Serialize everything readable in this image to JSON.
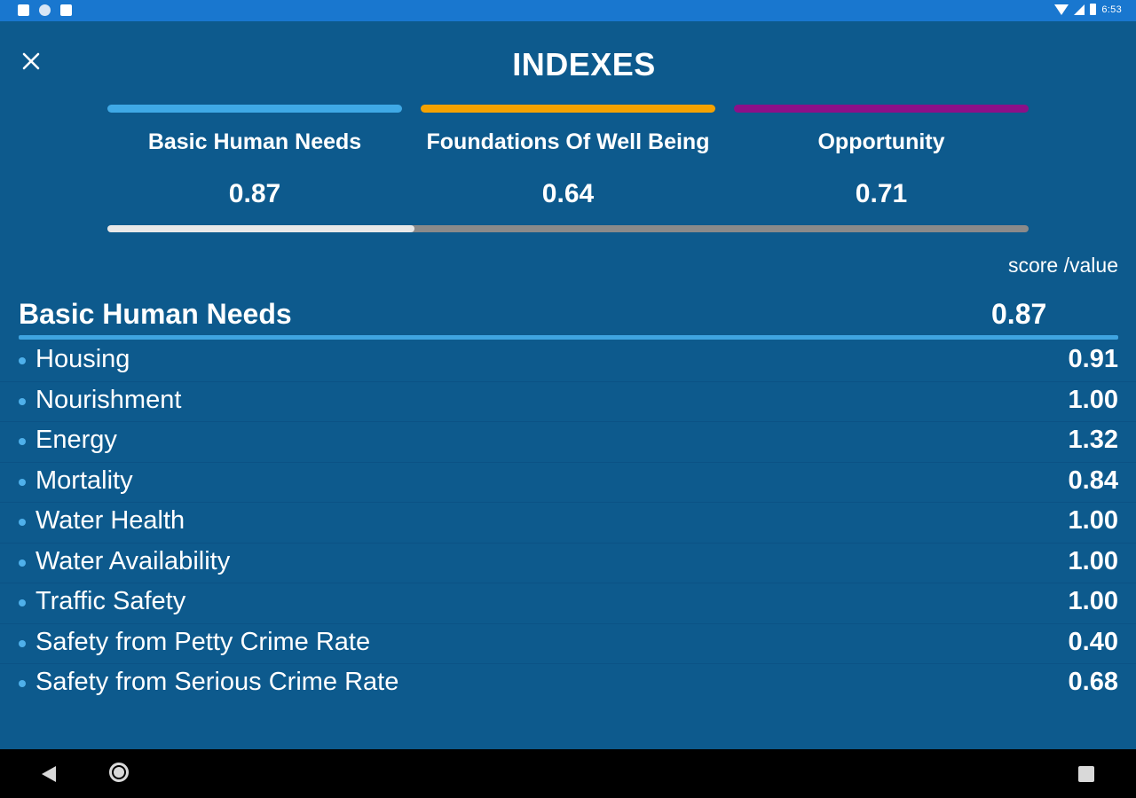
{
  "status_bar": {
    "time": "6:53"
  },
  "header": {
    "title": "INDEXES",
    "close_icon": "close-icon"
  },
  "indexes": [
    {
      "label": "Basic Human Needs",
      "value": "0.87",
      "color": "#3fa9e6"
    },
    {
      "label": "Foundations Of Well Being",
      "value": "0.64",
      "color": "#f5a200"
    },
    {
      "label": "Opportunity",
      "value": "0.71",
      "color": "#8c1088"
    }
  ],
  "tab_selector": {
    "selected_index": 0
  },
  "table": {
    "column_header": "score /value",
    "section_title": "Basic Human Needs",
    "section_value": "0.87",
    "rows": [
      {
        "label": "Housing",
        "value": "0.91"
      },
      {
        "label": "Nourishment",
        "value": "1.00"
      },
      {
        "label": "Energy",
        "value": "1.32"
      },
      {
        "label": "Mortality",
        "value": "0.84"
      },
      {
        "label": "Water Health",
        "value": "1.00"
      },
      {
        "label": "Water Availability",
        "value": "1.00"
      },
      {
        "label": "Traffic Safety",
        "value": "1.00"
      },
      {
        "label": "Safety from Petty Crime Rate",
        "value": "0.40"
      },
      {
        "label": "Safety from Serious Crime Rate",
        "value": "0.68"
      }
    ]
  },
  "nav_bar": {
    "back_icon": "back-icon",
    "home_icon": "home-icon",
    "recents_icon": "recents-icon"
  },
  "colors": {
    "background": "#0d5a8d",
    "status_bar": "#1977cf",
    "accent": "#3fa4e0"
  }
}
